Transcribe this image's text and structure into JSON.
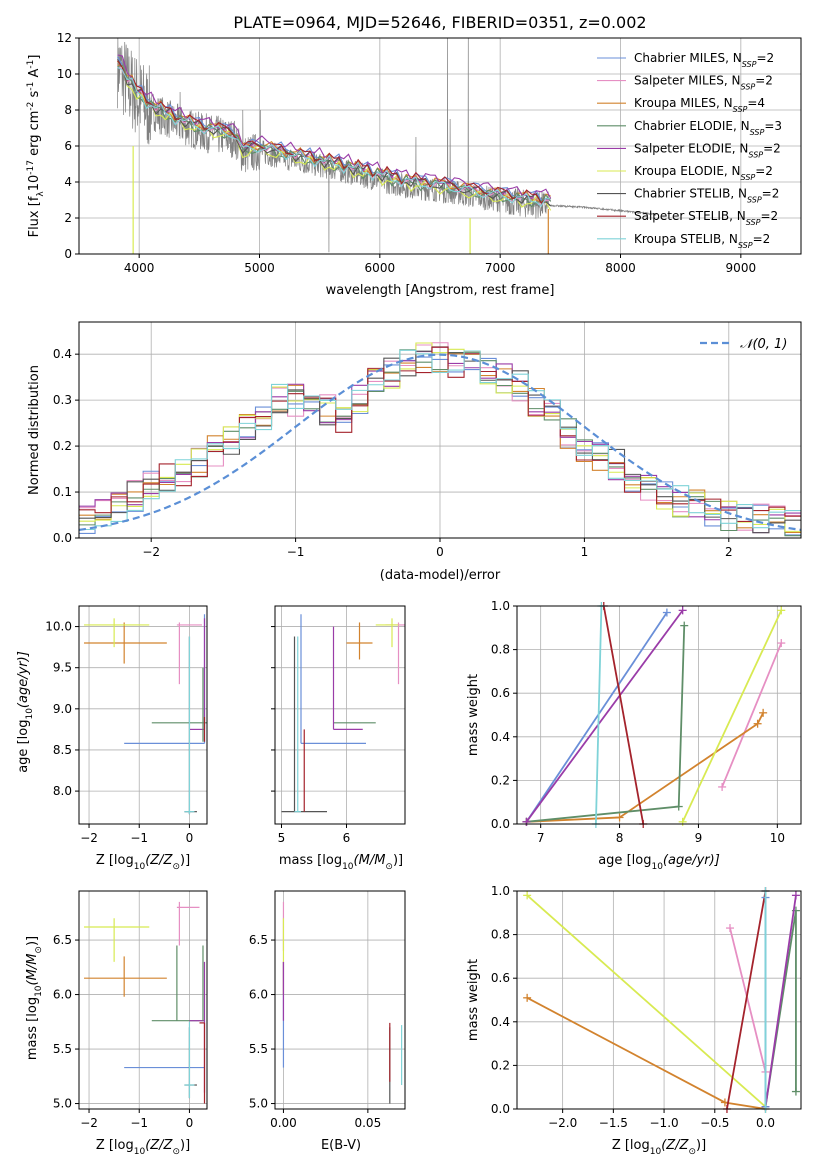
{
  "title": "PLATE=0964, MJD=52646, FIBERID=0351, z=0.002",
  "colors": {
    "c0": "#6a8fd8",
    "c1": "#e68fc3",
    "c2": "#d2832e",
    "c3": "#5f8e68",
    "c4": "#9a3ca8",
    "c5": "#d8ea52",
    "c6": "#555555",
    "c7": "#a4232c",
    "c8": "#7fd3d8",
    "grey": "#808080",
    "normal": "#5b8fd6"
  },
  "chart_data": [
    {
      "id": "spectrum",
      "type": "line",
      "xlabel": "wavelength [Angstrom, rest frame]",
      "ylabel_pre": "Flux [f",
      "ylabel_sub": "λ",
      "ylabel_mid": "10",
      "ylabel_sup1": "-17",
      "ylabel_post": " erg cm",
      "ylabel_sup2": "-2",
      "ylabel_post2": " s",
      "ylabel_sup3": "-1",
      "ylabel_post3": " A",
      "ylabel_sup4": "-1",
      "ylabel_end": "]",
      "xlim": [
        3500,
        9500
      ],
      "ylim": [
        0,
        12
      ],
      "xticks": [
        "4000",
        "5000",
        "6000",
        "7000",
        "8000",
        "9000"
      ],
      "xtickv": [
        4000,
        5000,
        6000,
        7000,
        8000,
        9000
      ],
      "yticks": [
        "0",
        "2",
        "4",
        "6",
        "8",
        "10",
        "12"
      ],
      "ytickv": [
        0,
        2,
        4,
        6,
        8,
        10,
        12
      ],
      "legend_location": "upper right",
      "legend": [
        {
          "label": "Chabrier MILES, N",
          "sub": "SSP",
          "val": "=2"
        },
        {
          "label": "Salpeter MILES, N",
          "sub": "SSP",
          "val": "=2"
        },
        {
          "label": "Kroupa MILES, N",
          "sub": "SSP",
          "val": "=4"
        },
        {
          "label": "Chabrier ELODIE, N",
          "sub": "SSP",
          "val": "=3"
        },
        {
          "label": "Salpeter ELODIE, N",
          "sub": "SSP",
          "val": "=2"
        },
        {
          "label": "Kroupa ELODIE, N",
          "sub": "SSP",
          "val": "=2"
        },
        {
          "label": "Chabrier STELIB, N",
          "sub": "SSP",
          "val": "=2"
        },
        {
          "label": "Salpeter STELIB, N",
          "sub": "SSP",
          "val": "=2"
        },
        {
          "label": "Kroupa STELIB, N",
          "sub": "SSP",
          "val": "=2"
        }
      ],
      "continuum": [
        [
          3820,
          10.5
        ],
        [
          3900,
          9.5
        ],
        [
          4000,
          8.6
        ],
        [
          4100,
          8.0
        ],
        [
          4300,
          7.3
        ],
        [
          4500,
          6.8
        ],
        [
          4800,
          6.4
        ],
        [
          4860,
          5.5
        ],
        [
          5000,
          5.7
        ],
        [
          5300,
          5.2
        ],
        [
          5600,
          4.8
        ],
        [
          5900,
          4.3
        ],
        [
          6200,
          3.8
        ],
        [
          6563,
          3.5
        ],
        [
          6800,
          3.2
        ],
        [
          7000,
          3.0
        ],
        [
          7200,
          2.8
        ],
        [
          7400,
          2.7
        ],
        [
          7700,
          2.6
        ],
        [
          8000,
          2.4
        ],
        [
          8300,
          2.2
        ]
      ]
    },
    {
      "id": "hist",
      "type": "step",
      "xlabel": "(data-model)/error",
      "ylabel": "Normed distribution",
      "xlim": [
        -2.5,
        2.5
      ],
      "ylim": [
        0,
        0.47
      ],
      "xticks": [
        "−2",
        "−1",
        "0",
        "1",
        "2"
      ],
      "xtickv": [
        -2,
        -1,
        0,
        1,
        2
      ],
      "yticks": [
        "0.0",
        "0.1",
        "0.2",
        "0.3",
        "0.4"
      ],
      "ytickv": [
        0,
        0.1,
        0.2,
        0.3,
        0.4
      ],
      "normal_label": "𝒩(0, 1)",
      "base": [
        0.045,
        0.05,
        0.07,
        0.09,
        0.12,
        0.13,
        0.14,
        0.16,
        0.19,
        0.21,
        0.24,
        0.27,
        0.3,
        0.3,
        0.29,
        0.28,
        0.26,
        0.3,
        0.34,
        0.36,
        0.38,
        0.39,
        0.39,
        0.38,
        0.38,
        0.37,
        0.35,
        0.33,
        0.3,
        0.27,
        0.23,
        0.2,
        0.18,
        0.16,
        0.13,
        0.11,
        0.09,
        0.08,
        0.07,
        0.06,
        0.05,
        0.045,
        0.04,
        0.035,
        0.03
      ]
    },
    {
      "id": "age_Z",
      "type": "errorbar",
      "xlabel_main": "Z [log",
      "xlabel_sub": "10",
      "xlabel_rest": "(Z/Z",
      "xlabel_sub2": "⊙",
      "xlabel_end": ")]",
      "ylabel_main": "age  [log",
      "ylabel_sub": "10",
      "ylabel_rest": "(age/yr)]",
      "xlim": [
        -2.2,
        0.35
      ],
      "ylim": [
        7.6,
        10.25
      ],
      "xticks": [
        "−2",
        "−1",
        "0"
      ],
      "xtickv": [
        -2,
        -1,
        0
      ],
      "yticks": [
        "8.0",
        "8.5",
        "9.0",
        "9.5",
        "10.0"
      ],
      "ytickv": [
        8,
        8.5,
        9,
        9.5,
        10
      ],
      "points": [
        [
          0.0,
          8.58,
          0.0,
          -1.3,
          0.3,
          0.0,
          0.0
        ],
        [
          0.0,
          9.55,
          0.0,
          0.0,
          0.0,
          0.0,
          0.0
        ],
        [
          -0.4,
          10.02,
          1,
          -0.2,
          0.25,
          9.3,
          10.05
        ],
        [
          -1.3,
          9.8,
          2,
          -2.1,
          -0.45,
          9.55,
          10.05
        ],
        [
          0.0,
          8.83,
          3,
          -0.75,
          0.35,
          8.6,
          8.9
        ],
        [
          0.3,
          8.75,
          4,
          0.0,
          0.35,
          8.0,
          10.1
        ],
        [
          -1.5,
          10.02,
          5,
          -2.1,
          -0.8,
          9.75,
          10.1
        ],
        [
          0.0,
          7.75,
          6,
          -0.1,
          0.2,
          7.7,
          9.85
        ],
        [
          0.3,
          8.75,
          7,
          0.3,
          0.3,
          8.6,
          8.9
        ],
        [
          0.0,
          7.75,
          8,
          -0.1,
          0.1,
          7.7,
          9.85
        ]
      ]
    },
    {
      "id": "age_mass",
      "type": "errorbar",
      "xlabel_main": "mass [log",
      "xlabel_sub": "10",
      "xlabel_rest": "(M/M",
      "xlabel_sub2": "⊙",
      "xlabel_end": ")]",
      "xlim": [
        4.9,
        6.9
      ],
      "ylim": [
        7.6,
        10.25
      ],
      "xticks": [
        "5",
        "6"
      ],
      "xtickv": [
        5,
        6
      ],
      "yticks": [],
      "ytickv": [
        8,
        8.5,
        9,
        9.5,
        10
      ]
    },
    {
      "id": "mw_age",
      "type": "line",
      "xlabel_main": "age  [log",
      "xlabel_sub": "10",
      "xlabel_rest": "(age/yr)]",
      "ylabel": "mass weight",
      "xlim": [
        6.7,
        10.3
      ],
      "ylim": [
        0,
        1
      ],
      "xticks": [
        "7",
        "8",
        "9",
        "10"
      ],
      "xtickv": [
        7,
        8,
        9,
        10
      ],
      "yticks": [
        "0.0",
        "0.2",
        "0.4",
        "0.6",
        "0.8",
        "1.0"
      ],
      "ytickv": [
        0,
        0.2,
        0.4,
        0.6,
        0.8,
        1
      ],
      "series": [
        {
          "c": 0,
          "p": [
            [
              6.82,
              0.01
            ],
            [
              8.6,
              0.97
            ]
          ]
        },
        {
          "c": 1,
          "p": [
            [
              9.3,
              0.17
            ],
            [
              10.05,
              0.83
            ]
          ]
        },
        {
          "c": 2,
          "p": [
            [
              6.82,
              0.01
            ],
            [
              8.0,
              0.03
            ],
            [
              9.75,
              0.46
            ],
            [
              9.82,
              0.51
            ]
          ]
        },
        {
          "c": 3,
          "p": [
            [
              6.82,
              0.01
            ],
            [
              8.75,
              0.08
            ],
            [
              8.82,
              0.91
            ]
          ]
        },
        {
          "c": 4,
          "p": [
            [
              6.82,
              0.01
            ],
            [
              8.8,
              0.98
            ]
          ]
        },
        {
          "c": 5,
          "p": [
            [
              8.8,
              0.01
            ],
            [
              10.05,
              0.98
            ]
          ]
        },
        {
          "c": 7,
          "p": [
            [
              7.8,
              1.0
            ],
            [
              8.3,
              0.0
            ]
          ]
        },
        {
          "c": 8,
          "p": [
            [
              7.7,
              0.0
            ],
            [
              7.77,
              1.0
            ]
          ]
        }
      ]
    },
    {
      "id": "mass_Z",
      "type": "errorbar",
      "xlabel_main": "Z [log",
      "xlabel_sub": "10",
      "xlabel_rest": "(Z/Z",
      "xlabel_sub2": "⊙",
      "xlabel_end": ")]",
      "ylabel_main": "mass [log",
      "ylabel_sub": "10",
      "ylabel_rest": "(M/M",
      "ylabel_sub2": "⊙",
      "ylabel_end": ")]",
      "xlim": [
        -2.2,
        0.35
      ],
      "ylim": [
        4.95,
        6.95
      ],
      "xticks": [
        "−2",
        "−1",
        "0"
      ],
      "xtickv": [
        -2,
        -1,
        0
      ],
      "yticks": [
        "5.0",
        "5.5",
        "6.0",
        "6.5"
      ],
      "ytickv": [
        5,
        5.5,
        6,
        6.5
      ]
    },
    {
      "id": "ebv",
      "type": "errorbar",
      "xlabel": "E(B-V)",
      "xlim": [
        -0.005,
        0.072
      ],
      "ylim": [
        4.95,
        6.95
      ],
      "xticks": [
        "0.00",
        "0.05"
      ],
      "xtickv": [
        0,
        0.05
      ],
      "yticks": [
        "5.0",
        "5.5",
        "6.0",
        "6.5"
      ],
      "ytickv": [
        5,
        5.5,
        6,
        6.5
      ]
    },
    {
      "id": "mw_Z",
      "type": "line",
      "xlabel_main": "Z [log",
      "xlabel_sub": "10",
      "xlabel_rest": "(Z/Z",
      "xlabel_sub2": "⊙",
      "xlabel_end": ")]",
      "ylabel": "mass weight",
      "xlim": [
        -2.45,
        0.35
      ],
      "ylim": [
        0,
        1
      ],
      "xticks": [
        "−2.0",
        "−1.5",
        "−1.0",
        "−0.5",
        "0.0"
      ],
      "xtickv": [
        -2,
        -1.5,
        -1,
        -0.5,
        0
      ],
      "yticks": [
        "0.0",
        "0.2",
        "0.4",
        "0.6",
        "0.8",
        "1.0"
      ],
      "ytickv": [
        0,
        0.2,
        0.4,
        0.6,
        0.8,
        1
      ],
      "series": [
        {
          "c": 5,
          "p": [
            [
              -2.35,
              0.98
            ],
            [
              0.0,
              0.01
            ]
          ]
        },
        {
          "c": 2,
          "p": [
            [
              -2.35,
              0.51
            ],
            [
              -0.4,
              0.03
            ],
            [
              0.0,
              0.0
            ]
          ]
        },
        {
          "c": 1,
          "p": [
            [
              -0.35,
              0.83
            ],
            [
              0.0,
              0.17
            ]
          ]
        },
        {
          "c": 7,
          "p": [
            [
              -0.38,
              0.0
            ],
            [
              0.0,
              1.0
            ]
          ]
        },
        {
          "c": 3,
          "p": [
            [
              0.0,
              0.01
            ],
            [
              0.3,
              0.91
            ],
            [
              0.3,
              0.08
            ]
          ]
        },
        {
          "c": 4,
          "p": [
            [
              0.0,
              0.01
            ],
            [
              0.3,
              0.98
            ]
          ]
        },
        {
          "c": 0,
          "p": [
            [
              0.0,
              0.97
            ],
            [
              0.0,
              0.01
            ]
          ]
        },
        {
          "c": 8,
          "p": [
            [
              0.0,
              0.0
            ],
            [
              0.0,
              1.0
            ]
          ]
        }
      ]
    }
  ]
}
